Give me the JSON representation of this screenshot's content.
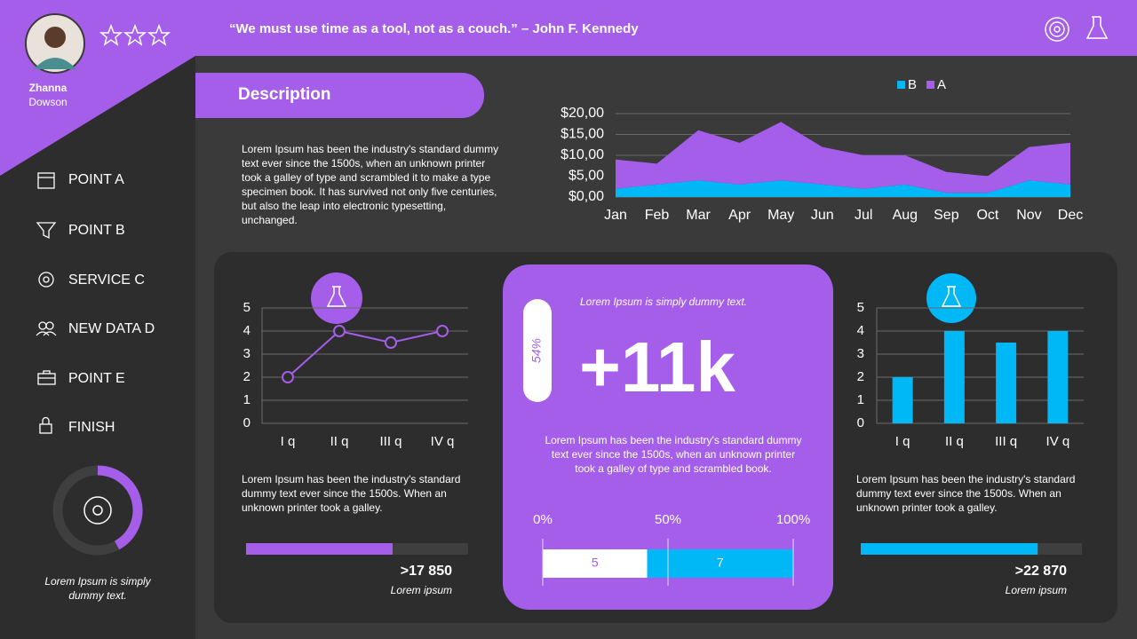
{
  "header": {
    "quote": "“We must use time as a tool, not as a couch.” – John F. Kennedy"
  },
  "profile": {
    "first_name": "Zhanna",
    "last_name": "Dowson"
  },
  "menu": [
    "POINT A",
    "POINT B",
    "SERVICE C",
    "NEW DATA D",
    "POINT E",
    "FINISH"
  ],
  "sidebar": {
    "progress": 42,
    "caption": "Lorem Ipsum is simply dummy text."
  },
  "description": {
    "title": "Description",
    "text": "Lorem Ipsum has been the industry's standard dummy text ever since the 1500s, when an unknown printer took a galley of type and scrambled it to make a type specimen book. It has survived not only five centuries, but also the leap into electronic typesetting, unchanged."
  },
  "center_card": {
    "caption": "Lorem Ipsum is simply dummy text.",
    "pill": "54%",
    "headline": "+11k",
    "text": "Lorem Ipsum has been the industry's standard dummy text ever since the 1500s, when an unknown printer took a galley of type and scrambled book."
  },
  "left_card": {
    "text": "Lorem Ipsum has been the industry's standard dummy text ever since the 1500s. When an unknown printer took a galley.",
    "progress": 66,
    "figure": ">17 850",
    "figure_caption": "Lorem ipsum"
  },
  "right_card": {
    "text": "Lorem Ipsum has been the industry's standard dummy text ever since the 1500s. When an unknown printer took a galley.",
    "progress": 80,
    "figure": ">22 870",
    "figure_caption": "Lorem ipsum"
  },
  "chart_data": [
    {
      "type": "area",
      "stacked": true,
      "categories": [
        "Jan",
        "Feb",
        "Mar",
        "Apr",
        "May",
        "Jun",
        "Jul",
        "Aug",
        "Sep",
        "Oct",
        "Nov",
        "Dec"
      ],
      "series": [
        {
          "name": "B",
          "color": "#00b8f5",
          "values": [
            2,
            3,
            4,
            3,
            4,
            3,
            2,
            3,
            1,
            1,
            4,
            3
          ]
        },
        {
          "name": "A",
          "color": "#a45eea",
          "values": [
            7,
            5,
            12,
            10,
            14,
            9,
            8,
            7,
            5,
            4,
            8,
            10
          ]
        }
      ],
      "ylim": [
        0,
        20
      ],
      "yticks": [
        {
          "value": 0,
          "label": "$0,00"
        },
        {
          "value": 5,
          "label": "$5,00"
        },
        {
          "value": 10,
          "label": "$10,00"
        },
        {
          "value": 15,
          "label": "$15,00"
        },
        {
          "value": 20,
          "label": "$20,00"
        }
      ],
      "grid": true,
      "legend": "top"
    },
    {
      "type": "line",
      "categories": [
        "I q",
        "II q",
        "III q",
        "IV q"
      ],
      "values": [
        2,
        4,
        3.5,
        4
      ],
      "color": "#a45eea",
      "ylim": [
        0,
        5
      ],
      "yticks": [
        0,
        1,
        2,
        3,
        4,
        5
      ],
      "grid": true
    },
    {
      "type": "bar",
      "categories": [
        "I q",
        "II q",
        "III q",
        "IV q"
      ],
      "values": [
        2,
        4,
        3.5,
        4
      ],
      "color": "#00b8f5",
      "ylim": [
        0,
        5
      ],
      "yticks": [
        0,
        1,
        2,
        3,
        4,
        5
      ],
      "grid": true
    },
    {
      "type": "hbar",
      "stacked": true,
      "values": [
        5,
        7
      ],
      "colors": [
        "#ffffff",
        "#00b8f5"
      ],
      "xlim": [
        0,
        12
      ],
      "xticks": [
        {
          "value": 0,
          "label": "0%"
        },
        {
          "value": 6,
          "label": "50%"
        },
        {
          "value": 12,
          "label": "100%"
        }
      ]
    }
  ]
}
